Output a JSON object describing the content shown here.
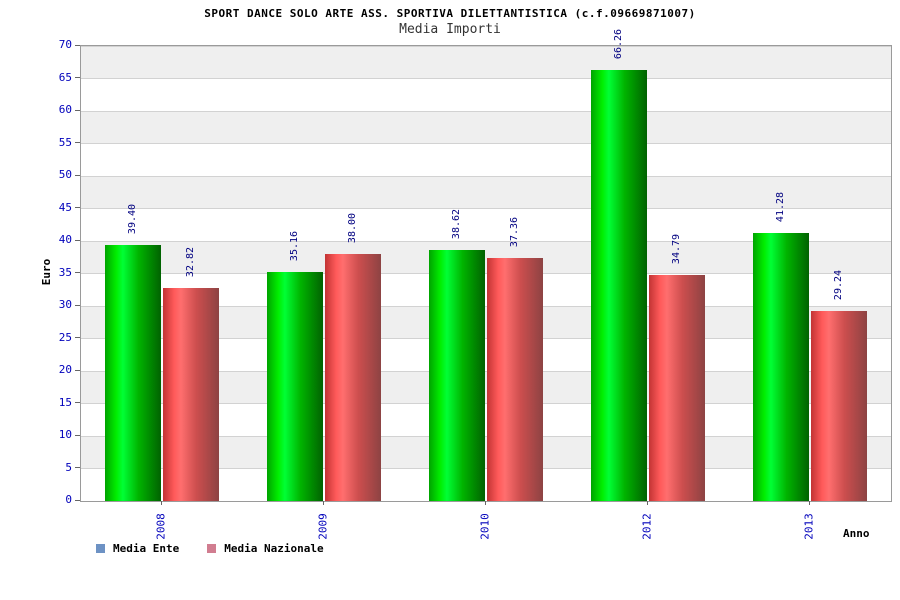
{
  "chart_data": {
    "type": "bar",
    "title": "SPORT DANCE SOLO ARTE ASS. SPORTIVA DILETTANTISTICA (c.f.09669871007)",
    "subtitle": "Media Importi",
    "xlabel": "Anno",
    "ylabel": "Euro",
    "ylim": [
      0,
      70
    ],
    "ytick_step": 5,
    "grid": true,
    "legend_position": "bottom",
    "categories": [
      "2008",
      "2009",
      "2010",
      "2012",
      "2013"
    ],
    "series": [
      {
        "name": "Media Ente",
        "bar_color": "#00e000",
        "legend_color": "#6d92c4",
        "values": [
          39.4,
          35.16,
          38.62,
          66.26,
          41.28
        ]
      },
      {
        "name": "Media Nazionale",
        "bar_color": "#e04848",
        "legend_color": "#d17d90",
        "values": [
          32.82,
          38.0,
          37.36,
          34.79,
          29.24
        ]
      }
    ],
    "value_label_format": "0.00",
    "colors": {
      "tick_label": "#0000bb",
      "value_label": "#000080",
      "band_alt": "#efefef",
      "gridline": "#d2d2d2"
    }
  }
}
